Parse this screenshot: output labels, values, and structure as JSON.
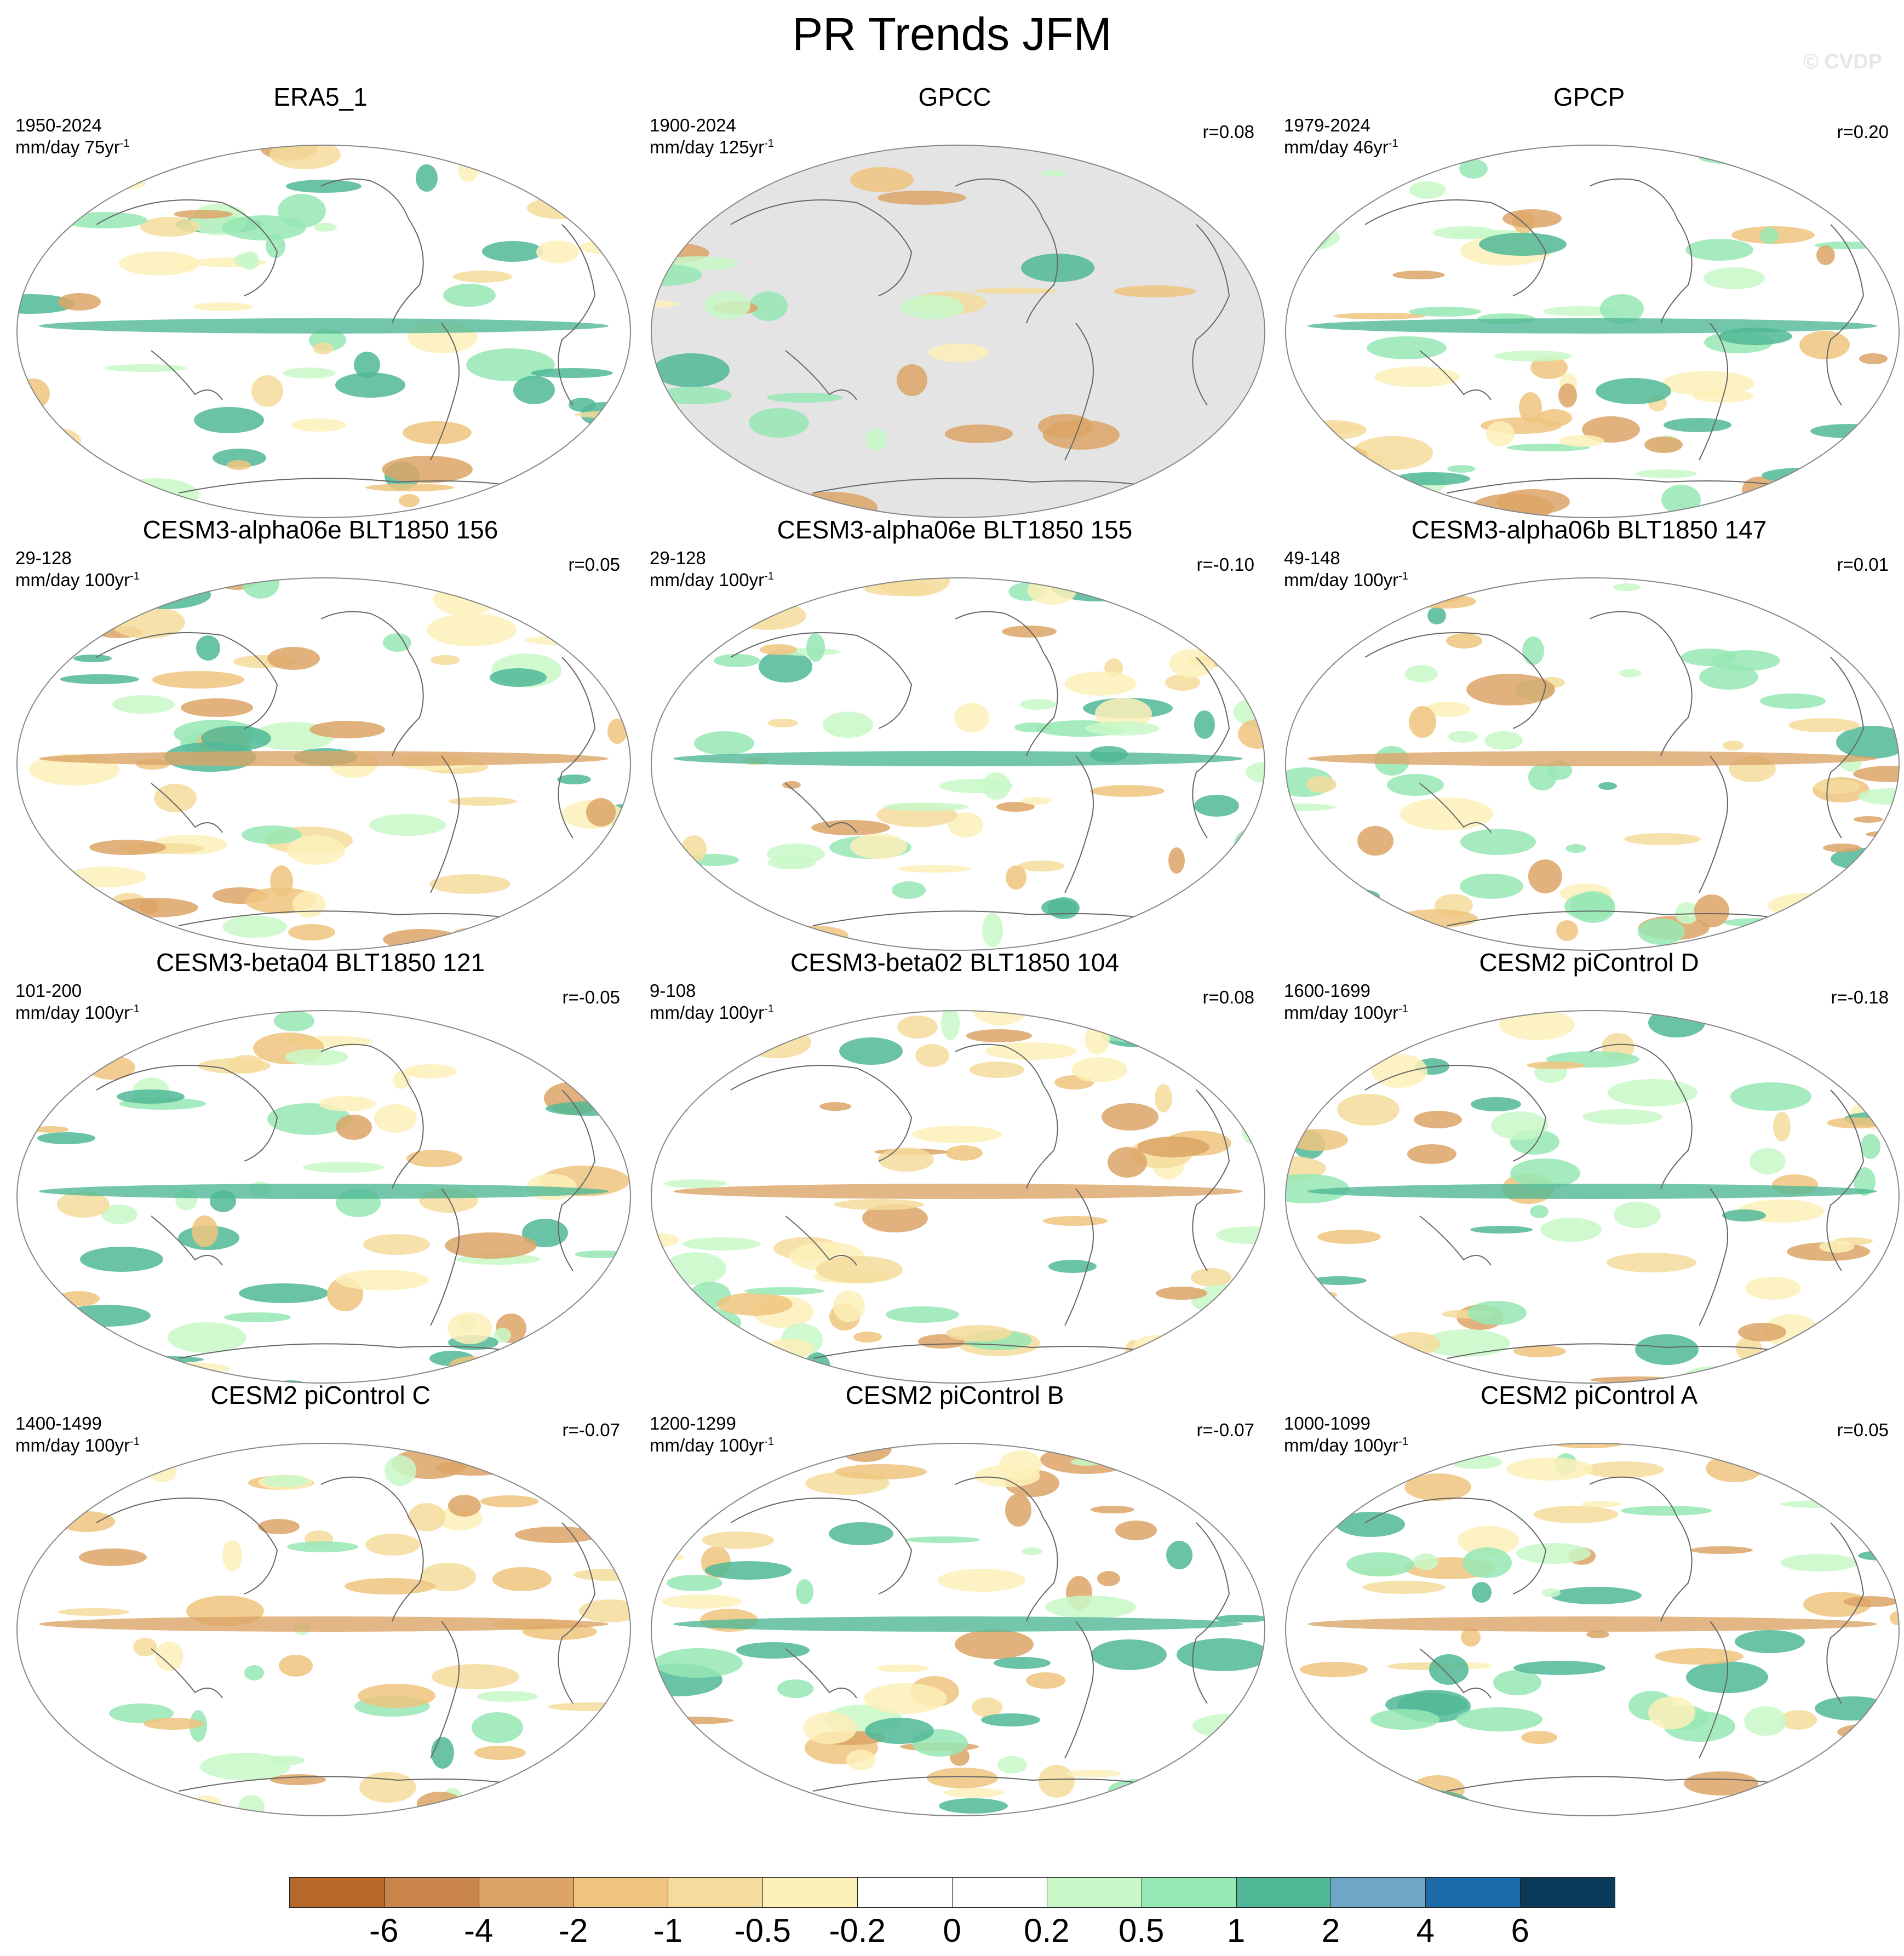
{
  "title": "PR Trends JFM",
  "watermark": "© CVDP",
  "panels": [
    {
      "title": "ERA5_1",
      "period": "1950-2024",
      "units": "mm/day 75yr",
      "corr": ""
    },
    {
      "title": "GPCC",
      "period": "1900-2024",
      "units": "mm/day 125yr",
      "corr": "r=0.08"
    },
    {
      "title": "GPCP",
      "period": "1979-2024",
      "units": "mm/day 46yr",
      "corr": "r=0.20"
    },
    {
      "title": "CESM3-alpha06e BLT1850 156",
      "period": "29-128",
      "units": "mm/day 100yr",
      "corr": "r=0.05"
    },
    {
      "title": "CESM3-alpha06e BLT1850 155",
      "period": "29-128",
      "units": "mm/day 100yr",
      "corr": "r=-0.10"
    },
    {
      "title": "CESM3-alpha06b BLT1850 147",
      "period": "49-148",
      "units": "mm/day 100yr",
      "corr": "r=0.01"
    },
    {
      "title": "CESM3-beta04 BLT1850 121",
      "period": "101-200",
      "units": "mm/day 100yr",
      "corr": "r=-0.05"
    },
    {
      "title": "CESM3-beta02 BLT1850 104",
      "period": "9-108",
      "units": "mm/day 100yr",
      "corr": "r=0.08"
    },
    {
      "title": "CESM2 piControl D",
      "period": "1600-1699",
      "units": "mm/day 100yr",
      "corr": "r=-0.18"
    },
    {
      "title": "CESM2 piControl C",
      "period": "1400-1499",
      "units": "mm/day 100yr",
      "corr": "r=-0.07"
    },
    {
      "title": "CESM2 piControl B",
      "period": "1200-1299",
      "units": "mm/day 100yr",
      "corr": "r=-0.07"
    },
    {
      "title": "CESM2 piControl A",
      "period": "1000-1099",
      "units": "mm/day 100yr",
      "corr": "r=0.05"
    }
  ],
  "units_exponent": "-1",
  "colorbar": {
    "colors": [
      "#b5682a",
      "#c8844a",
      "#dca466",
      "#efc47e",
      "#f5dc9c",
      "#fdf0b8",
      "#ffffff",
      "#ffffff",
      "#c8f8c8",
      "#96e8b4",
      "#50b896",
      "#6ea6c8",
      "#1d6aa8",
      "#0a3a5a"
    ],
    "labels": [
      "-6",
      "-4",
      "-2",
      "-1",
      "-0.5",
      "-0.2",
      "0",
      "0.2",
      "0.5",
      "1",
      "2",
      "4",
      "6"
    ]
  },
  "colors": {
    "land_mask": "#e4e4e4",
    "coast": "#666666",
    "ocean": "#ffffff"
  }
}
